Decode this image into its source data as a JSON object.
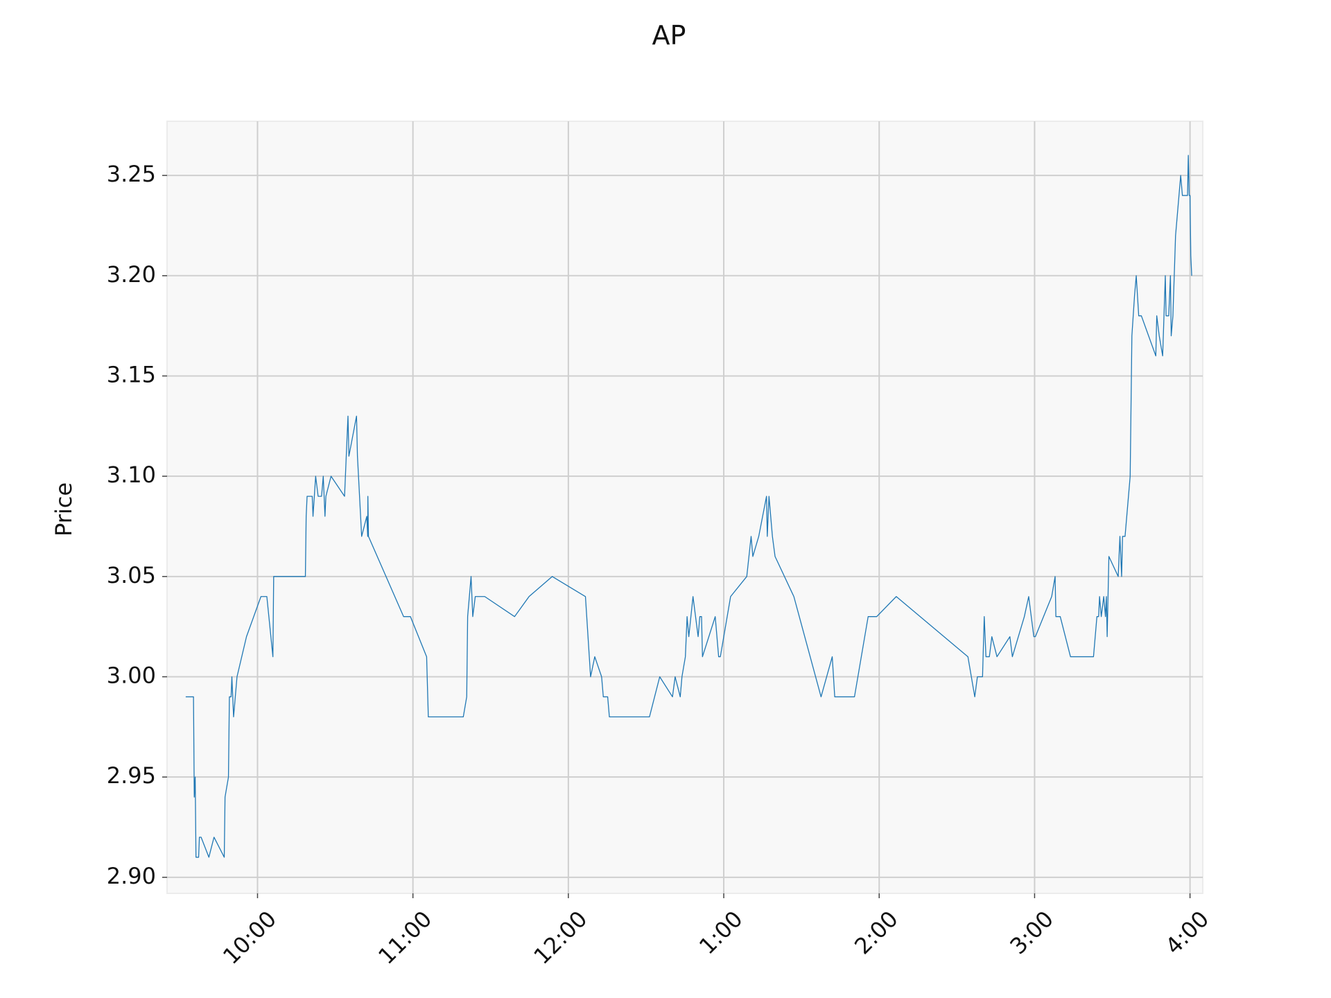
{
  "chart_data": {
    "type": "line",
    "title": "AP",
    "y_label": "Price",
    "x": [
      9.538,
      9.588,
      9.593,
      9.599,
      9.604,
      9.621,
      9.626,
      9.637,
      9.687,
      9.72,
      9.786,
      9.791,
      9.813,
      9.819,
      9.83,
      9.835,
      9.846,
      9.868,
      9.929,
      10.022,
      10.06,
      10.099,
      10.104,
      10.308,
      10.313,
      10.319,
      10.352,
      10.357,
      10.374,
      10.39,
      10.412,
      10.423,
      10.434,
      10.44,
      10.473,
      10.56,
      10.582,
      10.588,
      10.637,
      10.643,
      10.67,
      10.703,
      10.709,
      10.71,
      10.714,
      10.94,
      10.984,
      11.088,
      11.099,
      11.324,
      11.346,
      11.352,
      11.363,
      11.374,
      11.385,
      11.401,
      11.462,
      11.654,
      11.747,
      11.896,
      12.11,
      12.143,
      12.17,
      12.214,
      12.225,
      12.253,
      12.264,
      12.522,
      12.555,
      12.588,
      12.67,
      12.687,
      12.72,
      12.731,
      12.753,
      12.764,
      12.775,
      12.802,
      12.835,
      12.846,
      12.857,
      12.863,
      12.945,
      12.967,
      12.978,
      13.044,
      13.148,
      13.176,
      13.187,
      13.225,
      13.275,
      13.28,
      13.291,
      13.313,
      13.33,
      13.451,
      13.626,
      13.698,
      13.714,
      13.841,
      13.929,
      13.984,
      14.11,
      14.571,
      14.593,
      14.615,
      14.632,
      14.665,
      14.676,
      14.687,
      14.709,
      14.725,
      14.758,
      14.841,
      14.857,
      14.934,
      14.962,
      14.995,
      15.005,
      15.11,
      15.132,
      15.137,
      15.165,
      15.231,
      15.379,
      15.401,
      15.412,
      15.418,
      15.429,
      15.445,
      15.456,
      15.462,
      15.467,
      15.478,
      15.538,
      15.549,
      15.56,
      15.566,
      15.582,
      15.604,
      15.615,
      15.626,
      15.643,
      15.654,
      15.67,
      15.687,
      15.78,
      15.786,
      15.802,
      15.824,
      15.841,
      15.846,
      15.863,
      15.874,
      15.879,
      15.89,
      15.907,
      15.94,
      15.951,
      15.984,
      15.989,
      15.995,
      16.0,
      16.005,
      16.011
    ],
    "series": [
      {
        "name": "AP",
        "color": "#1f77b4",
        "values": [
          2.99,
          2.99,
          2.94,
          2.95,
          2.91,
          2.91,
          2.92,
          2.92,
          2.91,
          2.92,
          2.91,
          2.94,
          2.95,
          2.99,
          2.99,
          3.0,
          2.98,
          3.0,
          3.02,
          3.04,
          3.04,
          3.01,
          3.05,
          3.05,
          3.08,
          3.09,
          3.09,
          3.08,
          3.1,
          3.09,
          3.09,
          3.1,
          3.08,
          3.09,
          3.1,
          3.09,
          3.13,
          3.11,
          3.13,
          3.11,
          3.07,
          3.08,
          3.07,
          3.09,
          3.07,
          3.03,
          3.03,
          3.01,
          2.98,
          2.98,
          2.99,
          3.03,
          3.04,
          3.05,
          3.03,
          3.04,
          3.04,
          3.03,
          3.04,
          3.05,
          3.04,
          3.0,
          3.01,
          3.0,
          2.99,
          2.99,
          2.98,
          2.98,
          2.99,
          3.0,
          2.99,
          3.0,
          2.99,
          3.0,
          3.01,
          3.03,
          3.02,
          3.04,
          3.02,
          3.03,
          3.03,
          3.01,
          3.03,
          3.01,
          3.01,
          3.04,
          3.05,
          3.07,
          3.06,
          3.07,
          3.09,
          3.07,
          3.09,
          3.07,
          3.06,
          3.04,
          2.99,
          3.01,
          2.99,
          2.99,
          3.03,
          3.03,
          3.04,
          3.01,
          3.0,
          2.99,
          3.0,
          3.0,
          3.03,
          3.01,
          3.01,
          3.02,
          3.01,
          3.02,
          3.01,
          3.03,
          3.04,
          3.02,
          3.02,
          3.04,
          3.05,
          3.03,
          3.03,
          3.01,
          3.01,
          3.03,
          3.03,
          3.04,
          3.03,
          3.04,
          3.03,
          3.04,
          3.02,
          3.06,
          3.05,
          3.07,
          3.05,
          3.07,
          3.07,
          3.09,
          3.1,
          3.17,
          3.19,
          3.2,
          3.18,
          3.18,
          3.16,
          3.18,
          3.17,
          3.16,
          3.2,
          3.18,
          3.18,
          3.2,
          3.17,
          3.18,
          3.22,
          3.25,
          3.24,
          3.24,
          3.26,
          3.24,
          3.24,
          3.21,
          3.2
        ]
      }
    ],
    "xlim": [
      9.418,
      16.082
    ],
    "xticks": [
      {
        "value": 10,
        "label": "10:00"
      },
      {
        "value": 11,
        "label": "11:00"
      },
      {
        "value": 12,
        "label": "12:00"
      },
      {
        "value": 13,
        "label": "1:00"
      },
      {
        "value": 14,
        "label": "2:00"
      },
      {
        "value": 15,
        "label": "3:00"
      },
      {
        "value": 16,
        "label": "4:00"
      }
    ],
    "ylim": [
      2.892,
      3.277
    ],
    "yticks": [
      {
        "value": 2.9,
        "label": "2.90"
      },
      2.95,
      {
        "value": 3.0,
        "label": "3.00"
      },
      3.05,
      {
        "value": 3.1,
        "label": "3.10"
      },
      3.15,
      {
        "value": 3.2,
        "label": "3.20"
      },
      3.25
    ],
    "grid": true
  }
}
